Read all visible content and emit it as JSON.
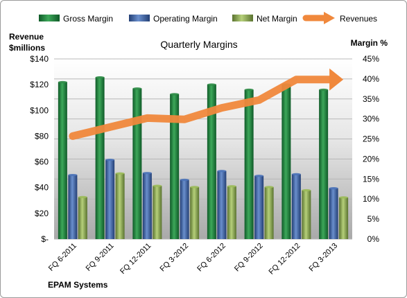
{
  "chart_data": {
    "type": "bar",
    "title": "Quarterly Margins",
    "company": "EPAM Systems",
    "left_axis_title": [
      "Revenue",
      "$millions"
    ],
    "right_axis_title": "Margin %",
    "categories": [
      "FQ 6-2011",
      "FQ 9-2011",
      "FQ 12-2011",
      "FQ 3-2012",
      "FQ 6-2012",
      "FQ 9-2012",
      "FQ 12-2012",
      "FQ 3-2013"
    ],
    "left_axis": {
      "min": 0,
      "max": 140,
      "step": 20,
      "tick_labels": [
        "$-",
        "$20",
        "$40",
        "$60",
        "$80",
        "$100",
        "$120",
        "$140"
      ]
    },
    "right_axis": {
      "min": 0,
      "max": 45,
      "step": 5,
      "tick_labels": [
        "0%",
        "5%",
        "10%",
        "15%",
        "20%",
        "25%",
        "30%",
        "35%",
        "40%",
        "45%"
      ]
    },
    "series": [
      {
        "name": "Gross Margin",
        "axis": "right",
        "kind": "bar",
        "color": "#2e8b46",
        "values": [
          39.2,
          40.4,
          37.6,
          36.2,
          38.6,
          37.3,
          38.6,
          37.3
        ]
      },
      {
        "name": "Operating Margin",
        "axis": "right",
        "kind": "bar",
        "color": "#4a72b8",
        "values": [
          16.0,
          19.8,
          16.5,
          14.8,
          17.0,
          15.8,
          16.2,
          12.7
        ]
      },
      {
        "name": "Net Margin",
        "axis": "right",
        "kind": "bar",
        "color": "#9bbb59",
        "values": [
          10.5,
          16.4,
          13.3,
          13.0,
          13.2,
          13.0,
          12.2,
          10.4
        ]
      },
      {
        "name": "Revenues",
        "axis": "left",
        "kind": "arrow-line",
        "color": "#f0883c",
        "values": [
          80,
          87,
          94,
          93,
          102,
          108,
          124,
          124
        ]
      }
    ],
    "grid": true,
    "legend": "top"
  }
}
